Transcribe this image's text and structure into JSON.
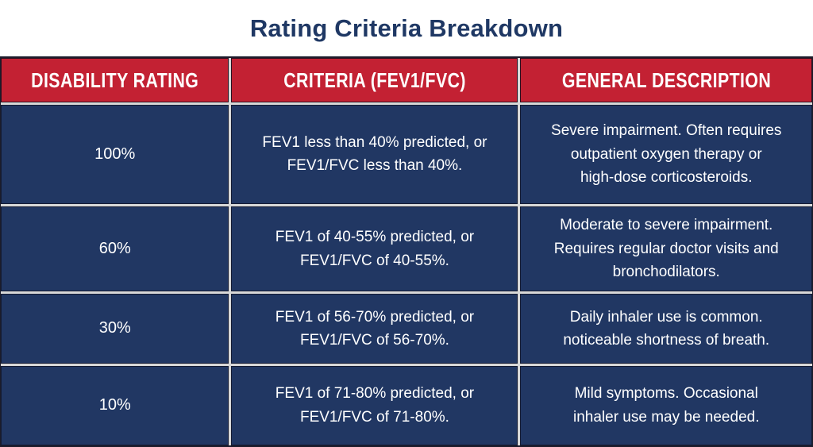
{
  "title": "Rating Criteria Breakdown",
  "colors": {
    "header_red": "#C32133",
    "cell_navy": "#213763",
    "title_navy": "#1F3864",
    "text_white": "#FFFFFF",
    "separator_gray": "#D8D8D8"
  },
  "table": {
    "headers": [
      "DISABILITY RATING",
      "CRITERIA (FEV1/FVC)",
      "GENERAL DESCRIPTION"
    ],
    "rows": [
      {
        "rating": "100%",
        "criteria": "FEV1 less than 40% predicted, or\nFEV1/FVC less than 40%.",
        "description": "Severe impairment. Often requires\noutpatient oxygen therapy or\nhigh-dose corticosteroids."
      },
      {
        "rating": "60%",
        "criteria": "FEV1 of 40-55% predicted, or\nFEV1/FVC of 40-55%.",
        "description": "Moderate to severe impairment.\nRequires regular doctor visits and\nbronchodilators."
      },
      {
        "rating": "30%",
        "criteria": "FEV1 of 56-70% predicted, or\nFEV1/FVC of 56-70%.",
        "description": "Daily inhaler use is common.\nnoticeable shortness of breath."
      },
      {
        "rating": "10%",
        "criteria": "FEV1 of 71-80% predicted, or\nFEV1/FVC of 71-80%.",
        "description": "Mild symptoms. Occasional\ninhaler use may be needed."
      }
    ]
  },
  "chart_data": {
    "type": "table",
    "title": "Rating Criteria Breakdown",
    "columns": [
      "DISABILITY RATING",
      "CRITERIA (FEV1/FVC)",
      "GENERAL DESCRIPTION"
    ],
    "rows": [
      [
        "100%",
        "FEV1 less than 40% predicted, or FEV1/FVC less than 40%.",
        "Severe impairment. Often requires outpatient oxygen therapy or high-dose corticosteroids."
      ],
      [
        "60%",
        "FEV1 of 40-55% predicted, or FEV1/FVC of 40-55%.",
        "Moderate to severe impairment. Requires regular doctor visits and bronchodilators."
      ],
      [
        "30%",
        "FEV1 of 56-70% predicted, or FEV1/FVC of 56-70%.",
        "Daily inhaler use is common. noticeable shortness of breath."
      ],
      [
        "10%",
        "FEV1 of 71-80% predicted, or FEV1/FVC of 71-80%.",
        "Mild symptoms. Occasional inhaler use may be needed."
      ]
    ],
    "layout": {
      "header_background": "#C32133",
      "row_background": "#213763",
      "text_color": "#FFFFFF",
      "grid": true
    }
  }
}
